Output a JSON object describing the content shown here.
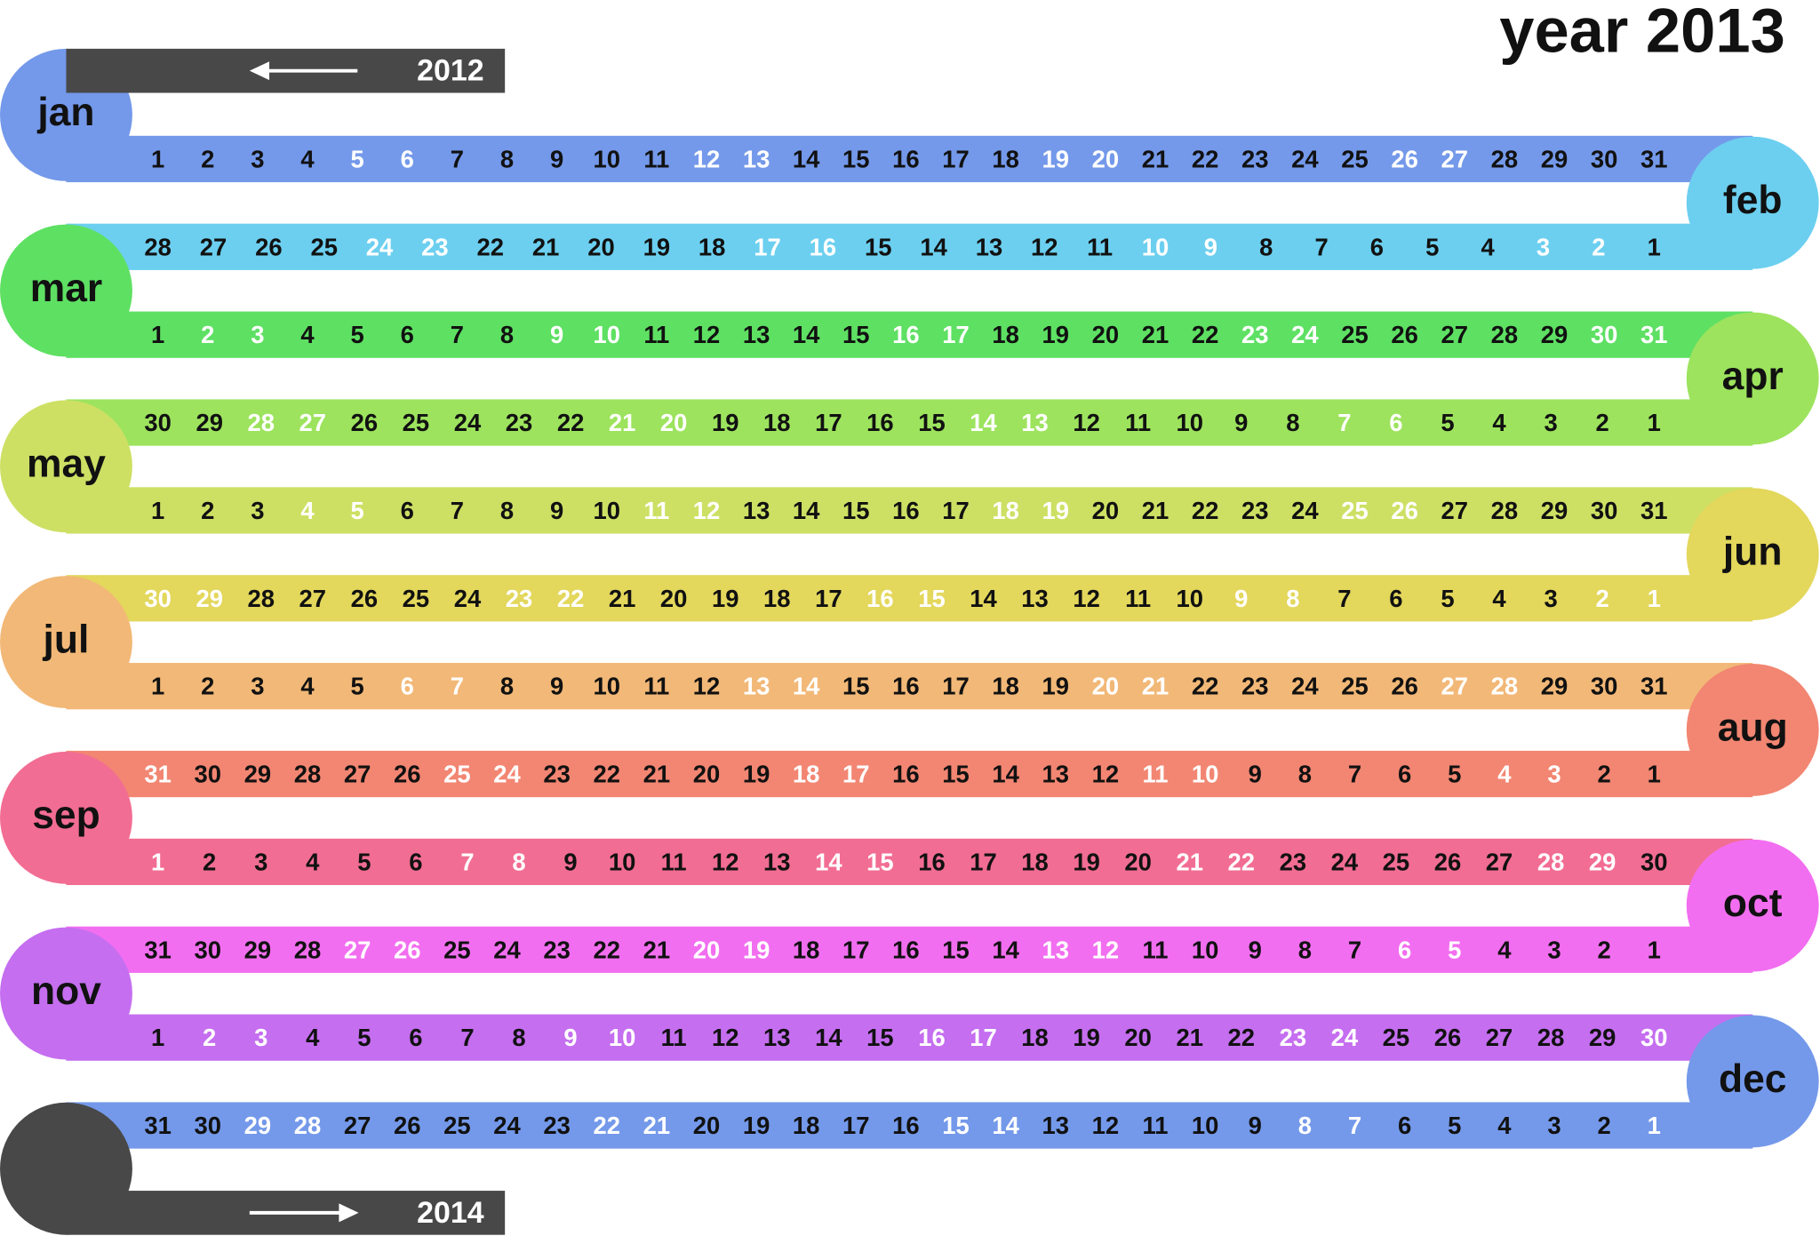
{
  "title": "year 2013",
  "prev_year": "2012",
  "next_year": "2014",
  "end_color": "#484848",
  "weekday_color": "#111111",
  "weekend_color": "#ffffff",
  "months": [
    {
      "name": "jan",
      "color": "#7499ea",
      "days": [
        1,
        2,
        3,
        4,
        5,
        6,
        7,
        8,
        9,
        10,
        11,
        12,
        13,
        14,
        15,
        16,
        17,
        18,
        19,
        20,
        21,
        22,
        23,
        24,
        25,
        26,
        27,
        28,
        29,
        30,
        31
      ],
      "weekend": [
        5,
        6,
        12,
        13,
        19,
        20,
        26,
        27
      ]
    },
    {
      "name": "feb",
      "color": "#6ccfef",
      "days": [
        28,
        27,
        26,
        25,
        24,
        23,
        22,
        21,
        20,
        19,
        18,
        17,
        16,
        15,
        14,
        13,
        12,
        11,
        10,
        9,
        8,
        7,
        6,
        5,
        4,
        3,
        2,
        1
      ],
      "weekend": [
        2,
        3,
        9,
        10,
        16,
        17,
        23,
        24
      ]
    },
    {
      "name": "mar",
      "color": "#5ee063",
      "days": [
        1,
        2,
        3,
        4,
        5,
        6,
        7,
        8,
        9,
        10,
        11,
        12,
        13,
        14,
        15,
        16,
        17,
        18,
        19,
        20,
        21,
        22,
        23,
        24,
        25,
        26,
        27,
        28,
        29,
        30,
        31
      ],
      "weekend": [
        2,
        3,
        9,
        10,
        16,
        17,
        23,
        24,
        30,
        31
      ]
    },
    {
      "name": "apr",
      "color": "#9de35e",
      "days": [
        30,
        29,
        28,
        27,
        26,
        25,
        24,
        23,
        22,
        21,
        20,
        19,
        18,
        17,
        16,
        15,
        14,
        13,
        12,
        11,
        10,
        9,
        8,
        7,
        6,
        5,
        4,
        3,
        2,
        1
      ],
      "weekend": [
        6,
        7,
        13,
        14,
        20,
        21,
        27,
        28
      ]
    },
    {
      "name": "may",
      "color": "#cde064",
      "days": [
        1,
        2,
        3,
        4,
        5,
        6,
        7,
        8,
        9,
        10,
        11,
        12,
        13,
        14,
        15,
        16,
        17,
        18,
        19,
        20,
        21,
        22,
        23,
        24,
        25,
        26,
        27,
        28,
        29,
        30,
        31
      ],
      "weekend": [
        4,
        5,
        11,
        12,
        18,
        19,
        25,
        26
      ]
    },
    {
      "name": "jun",
      "color": "#e3d75c",
      "days": [
        30,
        29,
        28,
        27,
        26,
        25,
        24,
        23,
        22,
        21,
        20,
        19,
        18,
        17,
        16,
        15,
        14,
        13,
        12,
        11,
        10,
        9,
        8,
        7,
        6,
        5,
        4,
        3,
        2,
        1
      ],
      "weekend": [
        1,
        2,
        8,
        9,
        15,
        16,
        22,
        23,
        29,
        30
      ]
    },
    {
      "name": "jul",
      "color": "#f2b877",
      "days": [
        1,
        2,
        3,
        4,
        5,
        6,
        7,
        8,
        9,
        10,
        11,
        12,
        13,
        14,
        15,
        16,
        17,
        18,
        19,
        20,
        21,
        22,
        23,
        24,
        25,
        26,
        27,
        28,
        29,
        30,
        31
      ],
      "weekend": [
        6,
        7,
        13,
        14,
        20,
        21,
        27,
        28
      ]
    },
    {
      "name": "aug",
      "color": "#f28672",
      "days": [
        31,
        30,
        29,
        28,
        27,
        26,
        25,
        24,
        23,
        22,
        21,
        20,
        19,
        18,
        17,
        16,
        15,
        14,
        13,
        12,
        11,
        10,
        9,
        8,
        7,
        6,
        5,
        4,
        3,
        2,
        1
      ],
      "weekend": [
        3,
        4,
        10,
        11,
        17,
        18,
        24,
        25,
        31
      ]
    },
    {
      "name": "sep",
      "color": "#f26d93",
      "days": [
        1,
        2,
        3,
        4,
        5,
        6,
        7,
        8,
        9,
        10,
        11,
        12,
        13,
        14,
        15,
        16,
        17,
        18,
        19,
        20,
        21,
        22,
        23,
        24,
        25,
        26,
        27,
        28,
        29,
        30
      ],
      "weekend": [
        1,
        7,
        8,
        14,
        15,
        21,
        22,
        28,
        29
      ]
    },
    {
      "name": "oct",
      "color": "#f26ef0",
      "days": [
        31,
        30,
        29,
        28,
        27,
        26,
        25,
        24,
        23,
        22,
        21,
        20,
        19,
        18,
        17,
        16,
        15,
        14,
        13,
        12,
        11,
        10,
        9,
        8,
        7,
        6,
        5,
        4,
        3,
        2,
        1
      ],
      "weekend": [
        5,
        6,
        12,
        13,
        19,
        20,
        26,
        27
      ]
    },
    {
      "name": "nov",
      "color": "#c56ef0",
      "days": [
        1,
        2,
        3,
        4,
        5,
        6,
        7,
        8,
        9,
        10,
        11,
        12,
        13,
        14,
        15,
        16,
        17,
        18,
        19,
        20,
        21,
        22,
        23,
        24,
        25,
        26,
        27,
        28,
        29,
        30
      ],
      "weekend": [
        2,
        3,
        9,
        10,
        16,
        17,
        23,
        24,
        30
      ]
    },
    {
      "name": "dec",
      "color": "#7499ea",
      "days": [
        31,
        30,
        29,
        28,
        27,
        26,
        25,
        24,
        23,
        22,
        21,
        20,
        19,
        18,
        17,
        16,
        15,
        14,
        13,
        12,
        11,
        10,
        9,
        8,
        7,
        6,
        5,
        4,
        3,
        2,
        1
      ],
      "weekend": [
        1,
        7,
        8,
        14,
        15,
        21,
        22,
        28,
        29
      ]
    }
  ]
}
